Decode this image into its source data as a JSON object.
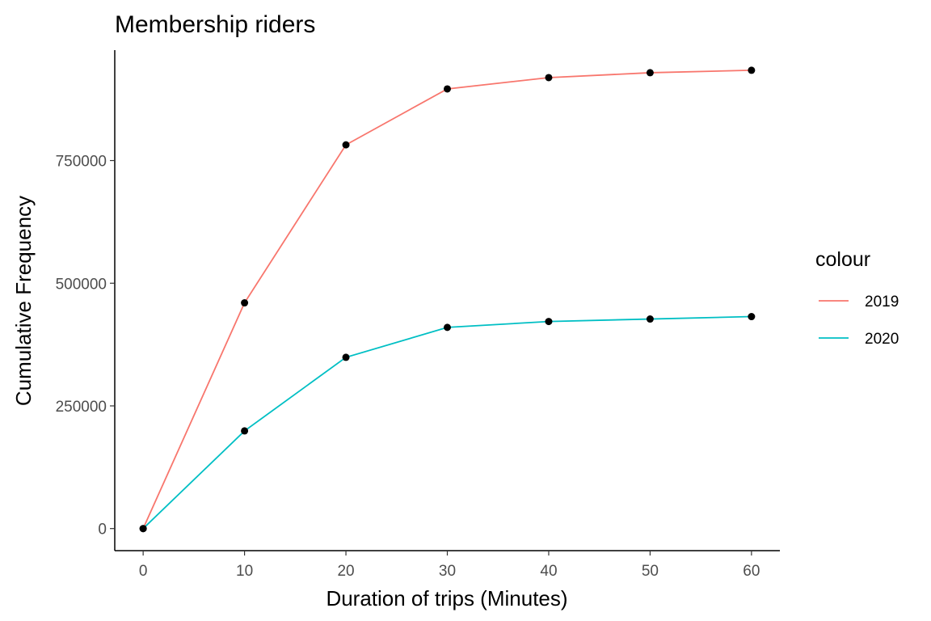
{
  "chart_data": {
    "type": "line",
    "title": "Membership riders",
    "xlabel": "Duration of trips (Minutes)",
    "ylabel": "Cumulative Frequency",
    "x": [
      0,
      10,
      20,
      30,
      40,
      50,
      60
    ],
    "xlim": [
      -2.8,
      62.8
    ],
    "ylim": [
      -45000,
      975000
    ],
    "xticks": [
      0,
      10,
      20,
      30,
      40,
      50,
      60
    ],
    "xtick_labels": [
      "0",
      "10",
      "20",
      "30",
      "40",
      "50",
      "60"
    ],
    "yticks": [
      0,
      250000,
      500000,
      750000
    ],
    "ytick_labels": [
      "0",
      "250000",
      "500000",
      "750000"
    ],
    "grid": false,
    "legend": {
      "title": "colour",
      "position": "right"
    },
    "point_color": "#000000",
    "series": [
      {
        "name": "2019",
        "color": "#F8766D",
        "values": [
          0,
          460000,
          782000,
          896000,
          919000,
          929000,
          934000
        ]
      },
      {
        "name": "2020",
        "color": "#00BFC4",
        "values": [
          0,
          199000,
          349000,
          410000,
          422000,
          427000,
          432000
        ]
      }
    ]
  }
}
